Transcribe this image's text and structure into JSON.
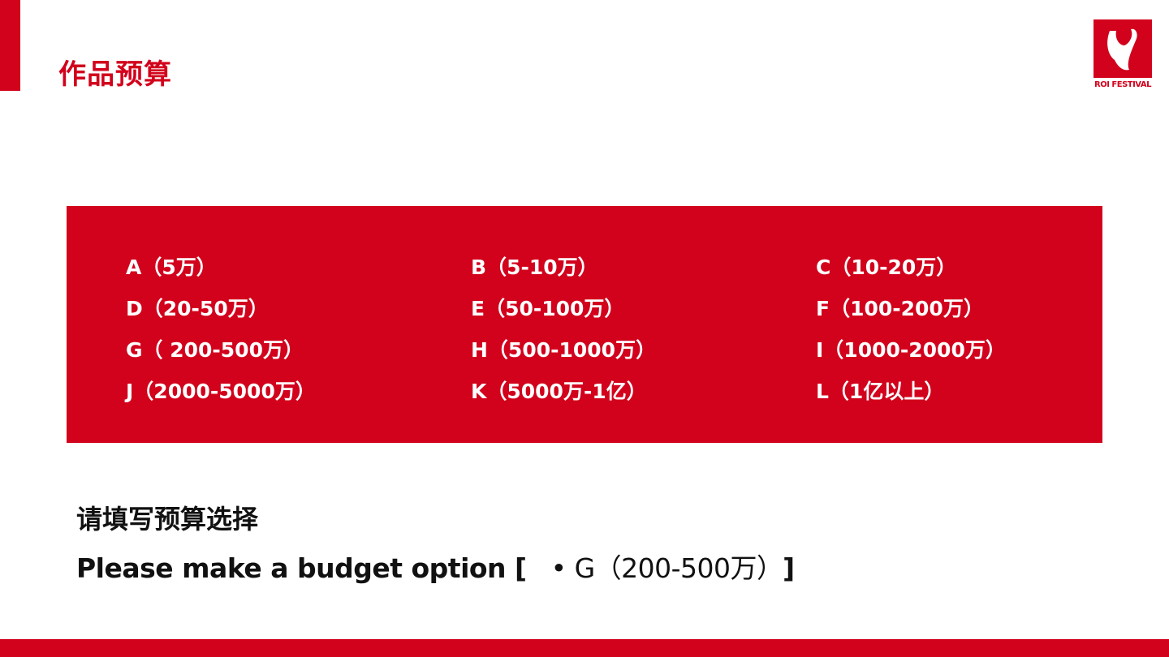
{
  "header": {
    "title": "作品预算",
    "logo_text": "ROI FESTIVAL"
  },
  "options": [
    "A（5万）",
    "B（5-10万）",
    "C（10-20万）",
    "D（20-50万）",
    "E（50-100万）",
    "F（100-200万）",
    "G（ 200-500万）",
    "H（500-1000万）",
    "I（1000-2000万）",
    "J（2000-5000万）",
    "K（5000万-1亿）",
    "L（1亿以上）"
  ],
  "question": {
    "zh": "请填写预算选择",
    "en": "Please make a budget option [",
    "answer": "• G（200-500万）",
    "close": "]"
  },
  "colors": {
    "brand": "#d2021c"
  }
}
